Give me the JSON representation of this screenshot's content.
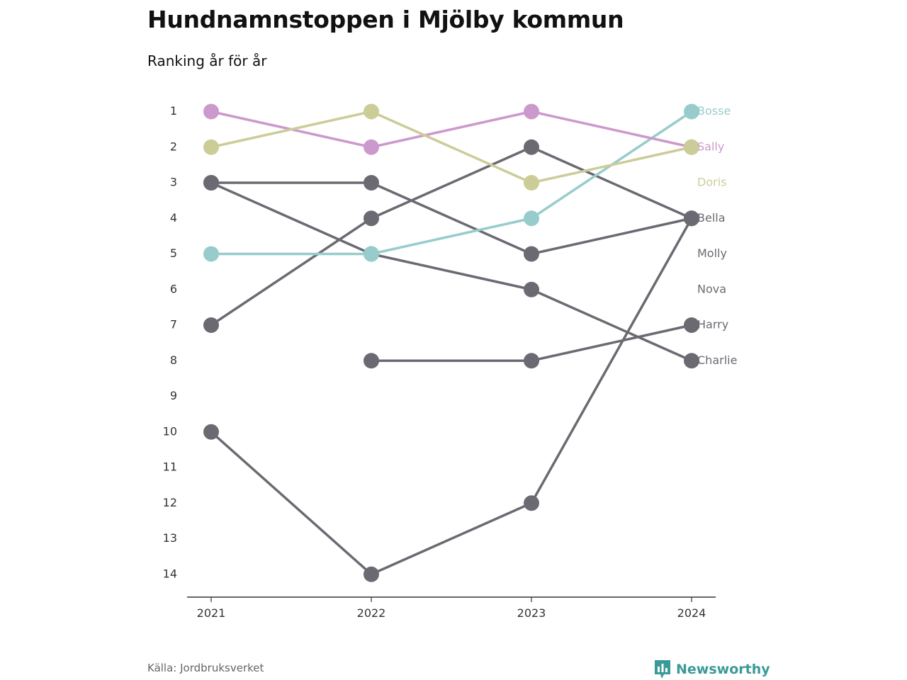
{
  "title": "Hundnamnstoppen i Mjölby kommun",
  "subtitle": "Ranking år för år",
  "source": "Källa: Jordbruksverket",
  "brand": {
    "name": "Newsworthy",
    "icon": "bar-chart-icon",
    "color": "#3a9a97"
  },
  "chart_data": {
    "type": "line",
    "x": [
      "2021",
      "2022",
      "2023",
      "2024"
    ],
    "y_ticks": [
      1,
      2,
      3,
      4,
      5,
      6,
      7,
      8,
      9,
      10,
      11,
      12,
      13,
      14
    ],
    "ylim": [
      14,
      1
    ],
    "y_reversed": true,
    "grid": false,
    "legend": "end-labels-right",
    "series": [
      {
        "name": "Bosse",
        "color": "#98cccc",
        "values": [
          5,
          5,
          4,
          1
        ]
      },
      {
        "name": "Sally",
        "color": "#cc99cc",
        "values": [
          1,
          2,
          1,
          2
        ]
      },
      {
        "name": "Doris",
        "color": "#cccc99",
        "values": [
          2,
          1,
          3,
          2
        ]
      },
      {
        "name": "Bella",
        "color": "#6b6a72",
        "values": [
          7,
          4,
          2,
          4
        ]
      },
      {
        "name": "Molly",
        "color": "#6b6a72",
        "values": [
          3,
          3,
          5,
          4
        ]
      },
      {
        "name": "Nova",
        "color": "#6b6a72",
        "values": [
          10,
          14,
          12,
          4
        ]
      },
      {
        "name": "Harry",
        "color": "#6b6a72",
        "values": [
          null,
          8,
          8,
          7
        ]
      },
      {
        "name": "Charlie",
        "color": "#6b6a72",
        "values": [
          3,
          5,
          6,
          8
        ]
      }
    ]
  }
}
